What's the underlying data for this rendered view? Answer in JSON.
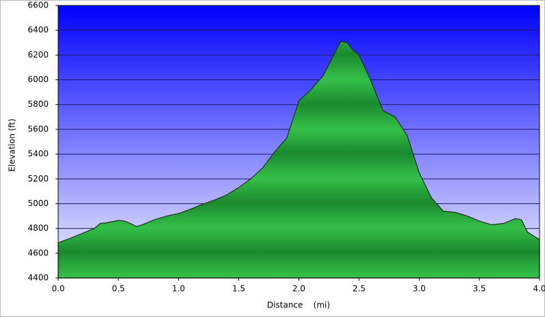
{
  "chart_data": {
    "type": "area",
    "x_label": "Distance    (mi)",
    "y_label": "Elevation (ft)",
    "x": [
      0.0,
      0.1,
      0.2,
      0.3,
      0.35,
      0.4,
      0.5,
      0.55,
      0.6,
      0.65,
      0.7,
      0.8,
      0.9,
      1.0,
      1.1,
      1.2,
      1.3,
      1.4,
      1.5,
      1.6,
      1.7,
      1.8,
      1.9,
      2.0,
      2.1,
      2.2,
      2.3,
      2.35,
      2.4,
      2.45,
      2.5,
      2.6,
      2.7,
      2.8,
      2.9,
      3.0,
      3.1,
      3.2,
      3.3,
      3.4,
      3.5,
      3.6,
      3.7,
      3.8,
      3.85,
      3.9,
      4.0
    ],
    "values": [
      4685,
      4720,
      4760,
      4800,
      4840,
      4845,
      4865,
      4860,
      4840,
      4815,
      4830,
      4870,
      4900,
      4920,
      4955,
      4995,
      5030,
      5070,
      5130,
      5200,
      5290,
      5420,
      5530,
      5830,
      5920,
      6030,
      6220,
      6310,
      6300,
      6240,
      6200,
      5990,
      5750,
      5700,
      5550,
      5250,
      5050,
      4940,
      4930,
      4900,
      4860,
      4830,
      4840,
      4880,
      4870,
      4770,
      4710
    ],
    "color": "#1f9a35",
    "xlim": [
      0,
      4.0
    ],
    "xticks": [
      {
        "value": 0,
        "label": "0.0"
      },
      0.5,
      {
        "value": 1,
        "label": "1.0"
      },
      1.5,
      {
        "value": 2,
        "label": "2.0"
      },
      2.5,
      {
        "value": 3,
        "label": "3.0"
      },
      3.5,
      {
        "value": 4,
        "label": "4.0"
      }
    ],
    "ylim": [
      4400,
      6600
    ],
    "yticks": [
      4400,
      4600,
      4800,
      5000,
      5200,
      5400,
      5600,
      5800,
      6000,
      6200,
      6400,
      6600
    ],
    "grid": true
  }
}
